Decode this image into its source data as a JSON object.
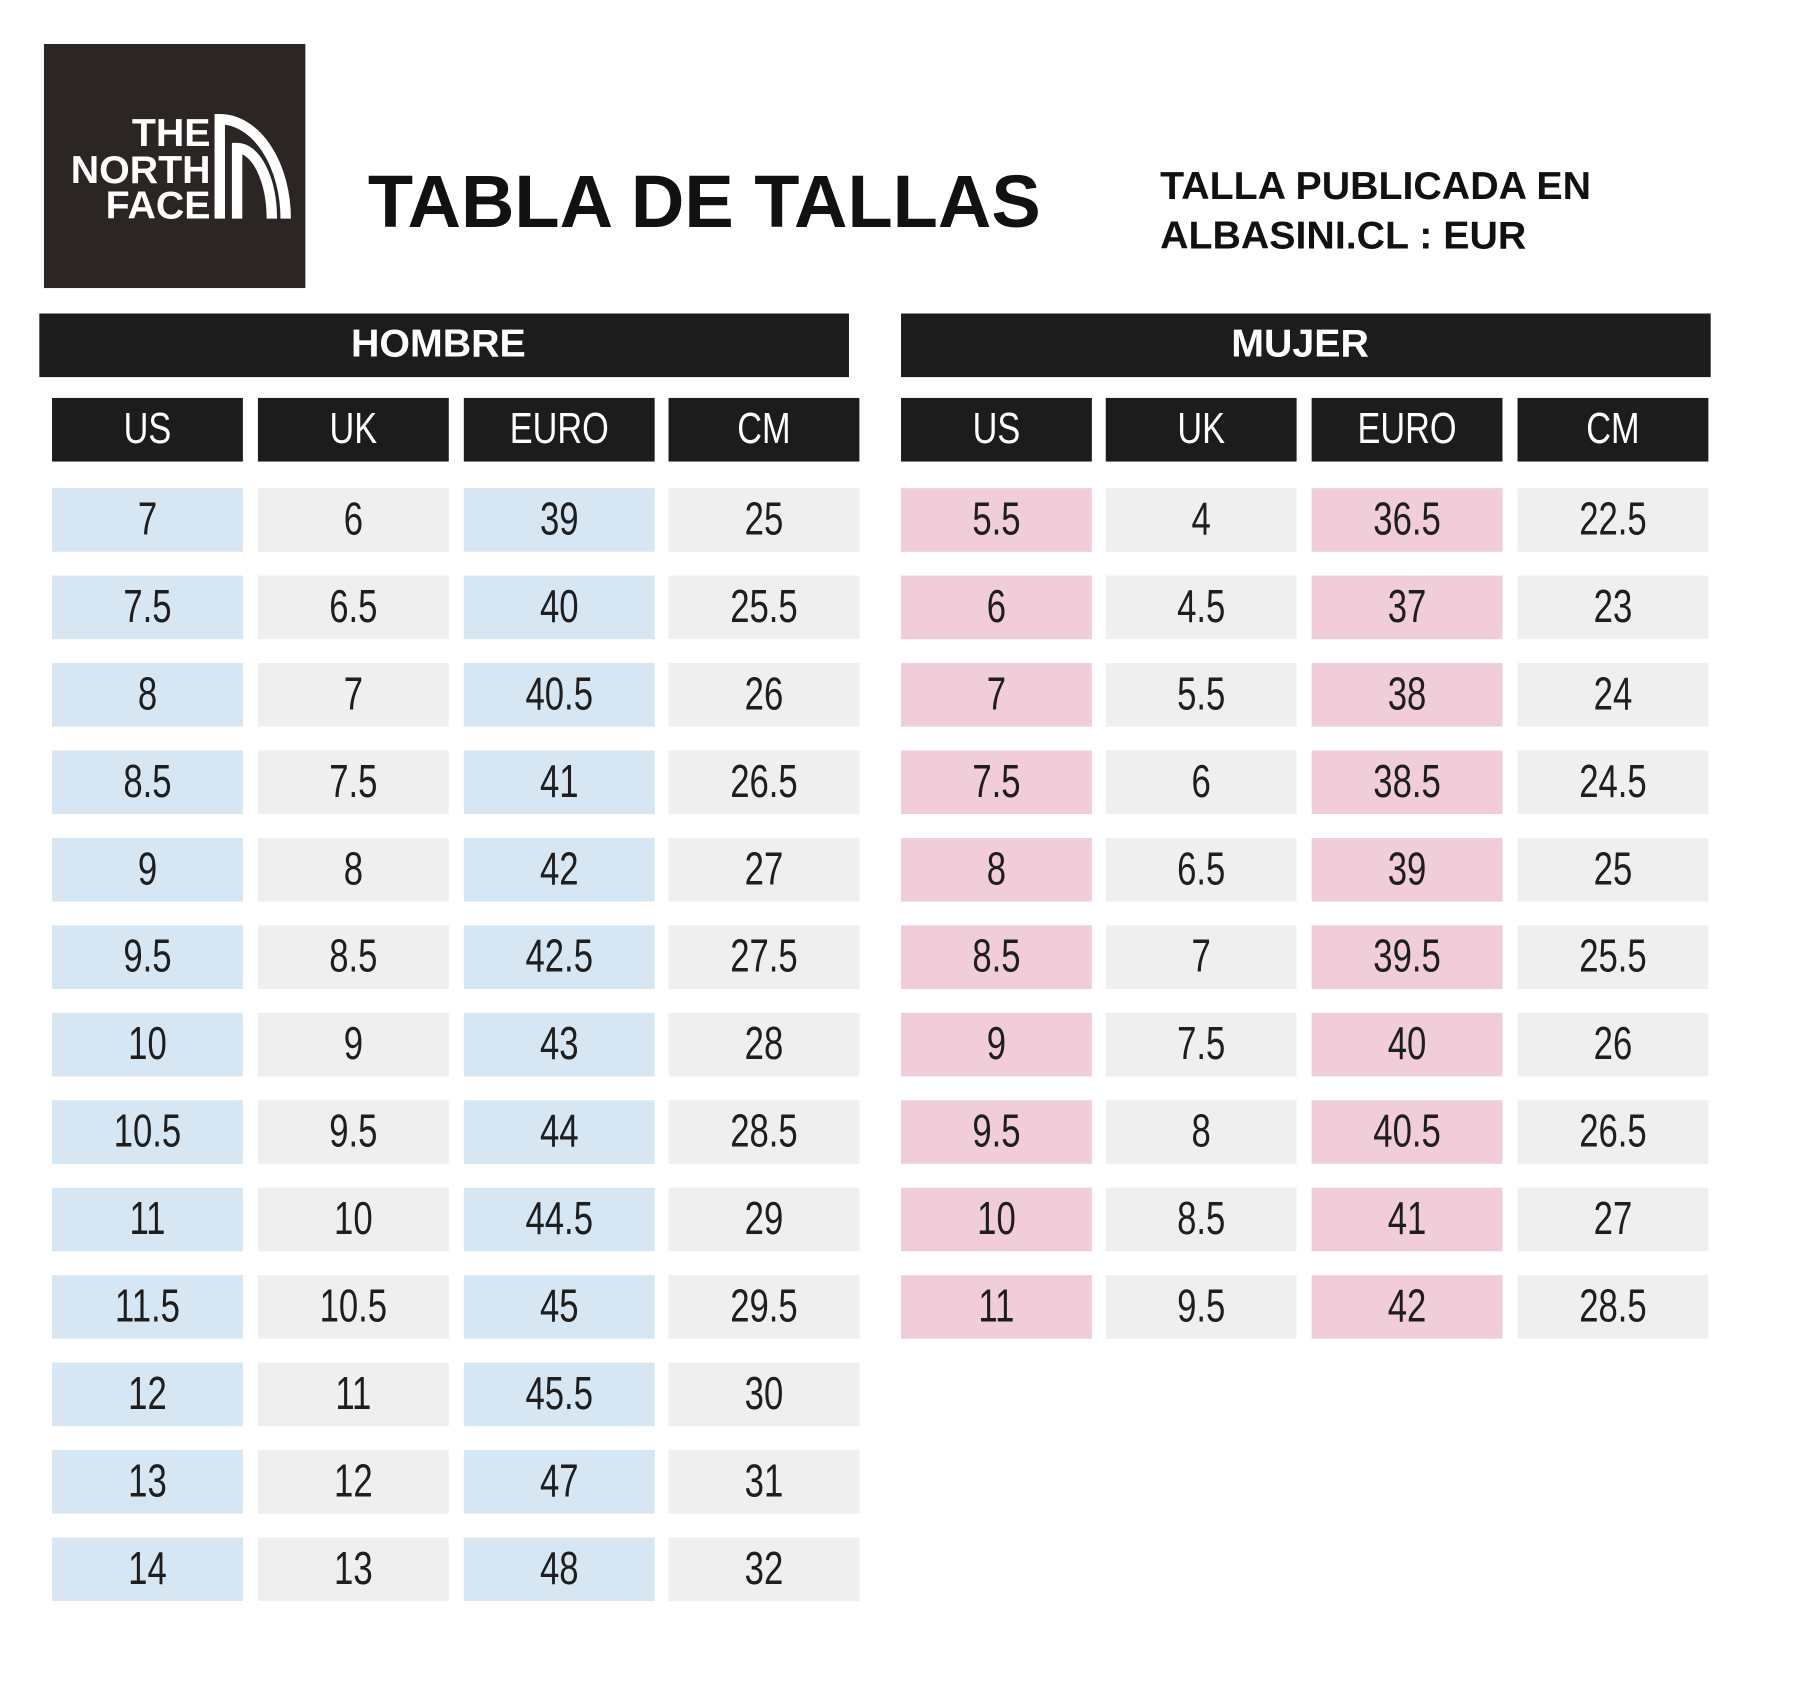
{
  "logo": {
    "lines": [
      "THE",
      "NORTH",
      "FACE"
    ]
  },
  "header": {
    "title": "TABLA DE TALLAS",
    "note_lines": [
      "TALLA PUBLICADA EN",
      "ALBASINI.CL : EUR"
    ]
  },
  "tables": [
    {
      "title": "HOMBRE",
      "columns": [
        "US",
        "UK",
        "EURO",
        "CM"
      ],
      "rows": [
        [
          7,
          6,
          39,
          25
        ],
        [
          7.5,
          6.5,
          40,
          25.5
        ],
        [
          8,
          7,
          40.5,
          26
        ],
        [
          8.5,
          7.5,
          41,
          26.5
        ],
        [
          9,
          8,
          42,
          27
        ],
        [
          9.5,
          8.5,
          42.5,
          27.5
        ],
        [
          10,
          9,
          43,
          28
        ],
        [
          10.5,
          9.5,
          44,
          28.5
        ],
        [
          11,
          10,
          44.5,
          29
        ],
        [
          11.5,
          10.5,
          45,
          29.5
        ],
        [
          12,
          11,
          45.5,
          30
        ],
        [
          13,
          12,
          47,
          31
        ],
        [
          14,
          13,
          48,
          32
        ]
      ]
    },
    {
      "title": "MUJER",
      "columns": [
        "US",
        "UK",
        "EURO",
        "CM"
      ],
      "rows": [
        [
          5.5,
          4,
          36.5,
          22.5
        ],
        [
          6,
          4.5,
          37,
          23
        ],
        [
          7,
          5.5,
          38,
          24
        ],
        [
          7.5,
          6,
          38.5,
          24.5
        ],
        [
          8,
          6.5,
          39,
          25
        ],
        [
          8.5,
          7,
          39.5,
          25.5
        ],
        [
          9,
          7.5,
          40,
          26
        ],
        [
          9.5,
          8,
          40.5,
          26.5
        ],
        [
          10,
          8.5,
          41,
          27
        ],
        [
          11,
          9.5,
          42,
          28.5
        ]
      ]
    }
  ]
}
